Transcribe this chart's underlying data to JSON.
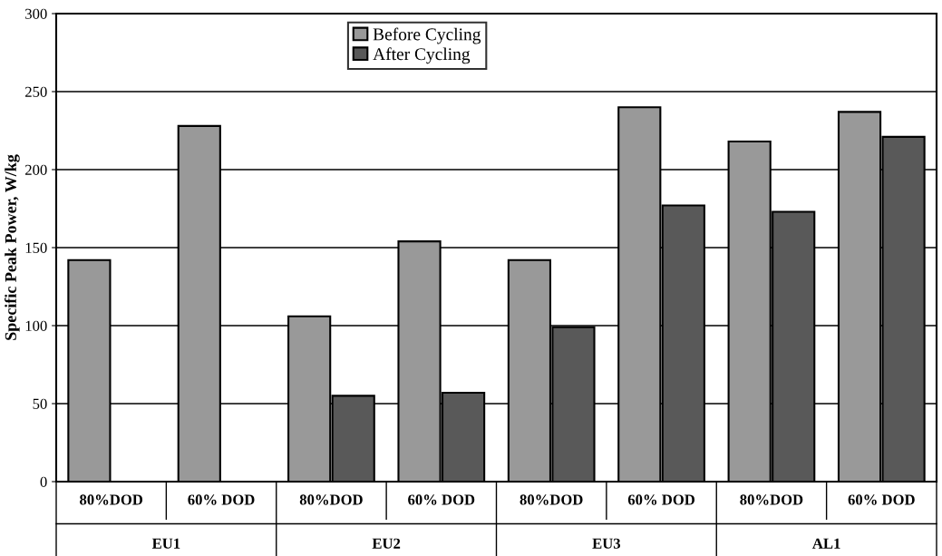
{
  "chart_data": {
    "type": "bar",
    "ylabel": "Specific Peak Power, W/kg",
    "categories": [
      "80%DOD",
      "60% DOD",
      "80%DOD",
      "60% DOD",
      "80%DOD",
      "60% DOD",
      "80%DOD",
      "60% DOD"
    ],
    "series": [
      {
        "name": "Before Cycling",
        "color": "#999999",
        "values": [
          142,
          228,
          106,
          154,
          142,
          240,
          218,
          237
        ]
      },
      {
        "name": "After Cycling",
        "color": "#595959",
        "values": [
          null,
          null,
          55,
          57,
          99,
          177,
          173,
          221
        ]
      }
    ],
    "annotations": [
      "EU1",
      "EU2",
      "EU3",
      "AL1"
    ],
    "ylim": [
      0,
      300
    ],
    "yticks": [
      0,
      50,
      100,
      150,
      200,
      250,
      300
    ],
    "grid": "y",
    "legend": "top"
  }
}
